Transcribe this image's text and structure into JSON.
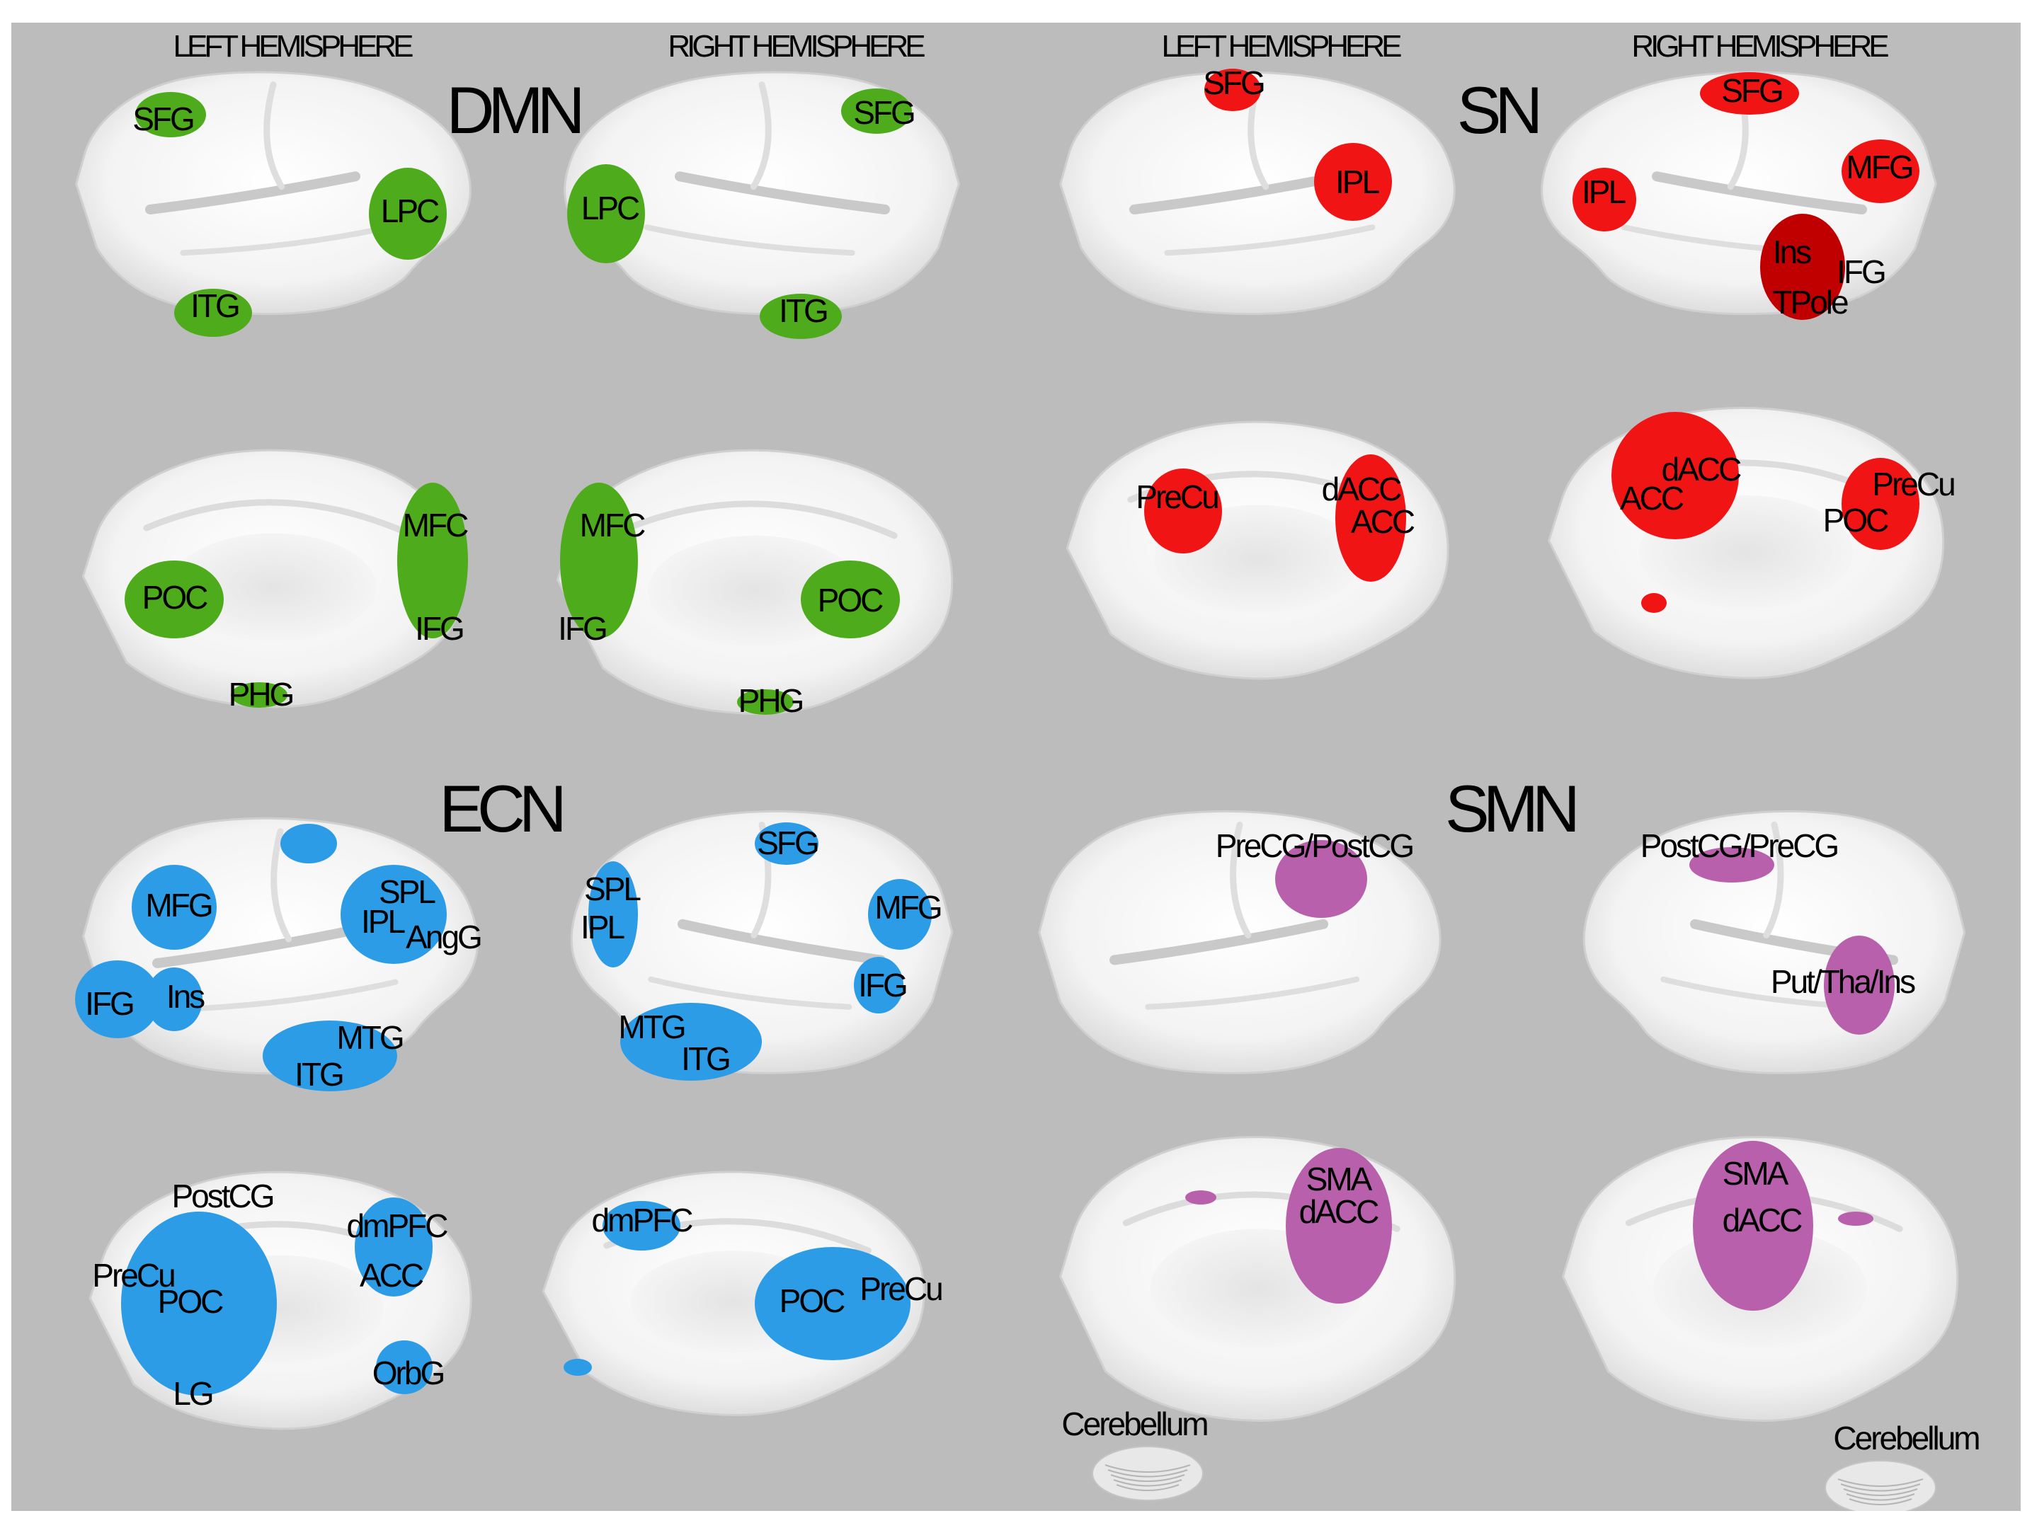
{
  "hemispheres": {
    "dmn_left": "LEFT HEMISPHERE",
    "dmn_right": "RIGHT HEMISPHERE",
    "sn_left": "LEFT HEMISPHERE",
    "sn_right": "RIGHT HEMISPHERE"
  },
  "networks": {
    "dmn": "DMN",
    "sn": "SN",
    "ecn": "ECN",
    "smn": "SMN"
  },
  "colors": {
    "background": "#bcbcbc",
    "brain": "#f4f4f4",
    "dmn": "#4eac1c",
    "sn": "#f01414",
    "sn_dark": "#c00000",
    "ecn": "#2c9ce6",
    "smn": "#b860ac"
  },
  "labels": {
    "dmn": {
      "lat_left": [
        "SFG",
        "LPC",
        "ITG"
      ],
      "lat_right": [
        "SFG",
        "LPC",
        "ITG"
      ],
      "med_left": [
        "MFC",
        "POC",
        "IFG",
        "PHG"
      ],
      "med_right": [
        "MFC",
        "IFG",
        "POC",
        "PHG"
      ]
    },
    "sn": {
      "lat_left": [
        "SFG",
        "IPL"
      ],
      "lat_right": [
        "SFG",
        "MFG",
        "IPL",
        "Ins",
        "IFG",
        "TPole"
      ],
      "med_left": [
        "PreCu",
        "dACC",
        "ACC"
      ],
      "med_right": [
        "dACC",
        "ACC",
        "PreCu",
        "POC"
      ]
    },
    "ecn": {
      "lat_left": [
        "MFG",
        "SPL",
        "IPL",
        "AngG",
        "IFG",
        "Ins",
        "MTG",
        "ITG"
      ],
      "lat_right": [
        "SFG",
        "SPL",
        "IPL",
        "MFG",
        "IFG",
        "MTG",
        "ITG"
      ],
      "med_left": [
        "PostCG",
        "dmPFC",
        "PreCu",
        "POC",
        "ACC",
        "OrbG",
        "LG"
      ],
      "med_right": [
        "dmPFC",
        "POC",
        "PreCu"
      ]
    },
    "smn": {
      "lat_left": [
        "PreCG/PostCG"
      ],
      "lat_right": [
        "PostCG/PreCG",
        "Put/Tha/Ins"
      ],
      "med_left": [
        "SMA",
        "dACC",
        "Cerebellum"
      ],
      "med_right": [
        "SMA",
        "dACC",
        "Cerebellum"
      ]
    }
  }
}
